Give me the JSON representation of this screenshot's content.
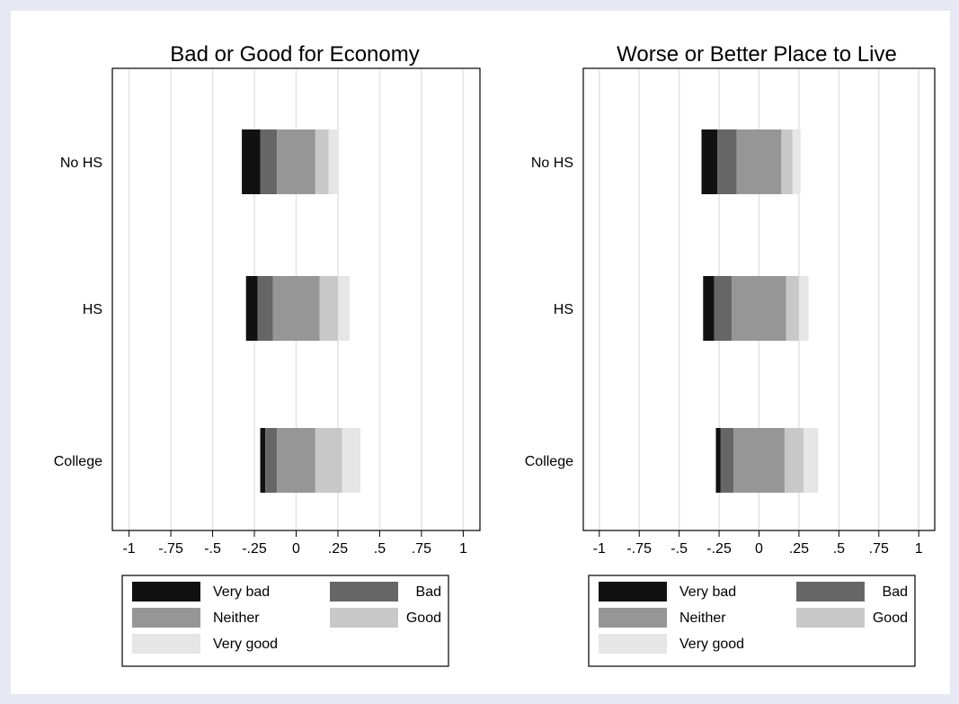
{
  "colors": {
    "very_bad": "#111111",
    "bad": "#666666",
    "neither": "#969696",
    "good": "#c8c8c8",
    "very_good": "#e6e6e6",
    "grid": "#e2e2e2",
    "frame": "#000000",
    "page_border": "#e8e8f4"
  },
  "chart_data": [
    {
      "type": "bar",
      "orientation": "horizontal",
      "stacked": "diverging",
      "title": "Bad or Good for Economy",
      "xlabel": "",
      "ylabel": "",
      "xlim": [
        -1.1,
        1.1
      ],
      "x_ticks": [
        -1,
        -0.75,
        -0.5,
        -0.25,
        0,
        0.25,
        0.5,
        0.75,
        1
      ],
      "x_tick_labels": [
        "-1",
        "-.75",
        "-.5",
        "-.25",
        "0",
        ".25",
        ".5",
        ".75",
        "1"
      ],
      "grid": true,
      "legend_position": "bottom",
      "categories": [
        "No HS",
        "HS",
        "College"
      ],
      "series": [
        {
          "name": "Very bad",
          "key": "very_bad",
          "values": [
            0.11,
            0.07,
            0.03
          ]
        },
        {
          "name": "Bad",
          "key": "bad",
          "values": [
            0.1,
            0.09,
            0.07
          ]
        },
        {
          "name": "Neither",
          "key": "neither",
          "values": [
            0.23,
            0.28,
            0.23
          ]
        },
        {
          "name": "Good",
          "key": "good",
          "values": [
            0.08,
            0.11,
            0.16
          ]
        },
        {
          "name": "Very good",
          "key": "very_good",
          "values": [
            0.06,
            0.07,
            0.11
          ]
        }
      ]
    },
    {
      "type": "bar",
      "orientation": "horizontal",
      "stacked": "diverging",
      "title": "Worse or Better  Place to Live",
      "xlabel": "",
      "ylabel": "",
      "xlim": [
        -1.1,
        1.1
      ],
      "x_ticks": [
        -1,
        -0.75,
        -0.5,
        -0.25,
        0,
        0.25,
        0.5,
        0.75,
        1
      ],
      "x_tick_labels": [
        "-1",
        "-.75",
        "-.5",
        "-.25",
        "0",
        ".25",
        ".5",
        ".75",
        "1"
      ],
      "grid": true,
      "legend_position": "bottom",
      "categories": [
        "No HS",
        "HS",
        "College"
      ],
      "series": [
        {
          "name": "Very bad",
          "key": "very_bad",
          "values": [
            0.1,
            0.07,
            0.03
          ]
        },
        {
          "name": "Bad",
          "key": "bad",
          "values": [
            0.12,
            0.11,
            0.08
          ]
        },
        {
          "name": "Neither",
          "key": "neither",
          "values": [
            0.28,
            0.34,
            0.32
          ]
        },
        {
          "name": "Good",
          "key": "good",
          "values": [
            0.07,
            0.08,
            0.12
          ]
        },
        {
          "name": "Very good",
          "key": "very_good",
          "values": [
            0.05,
            0.06,
            0.09
          ]
        }
      ]
    }
  ],
  "legend": {
    "items": [
      {
        "label": "Very bad",
        "key": "very_bad"
      },
      {
        "label": "Bad",
        "key": "bad"
      },
      {
        "label": "Neither",
        "key": "neither"
      },
      {
        "label": "Good",
        "key": "good"
      },
      {
        "label": "Very good",
        "key": "very_good"
      }
    ]
  }
}
